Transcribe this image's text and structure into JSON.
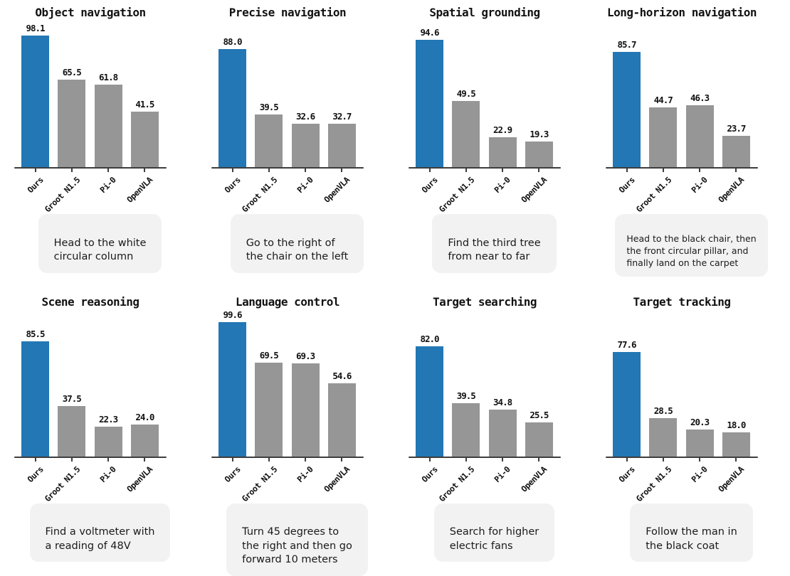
{
  "figure": {
    "description_note": "2x4 grid of bar charts comparing models across navigation benchmarks, each with an instruction caption",
    "x_categories": [
      "Ours",
      "Groot N1.5",
      "Pi-0",
      "OpenVLA"
    ]
  },
  "colors": {
    "highlight_bar": "#2277b4",
    "default_bar": "#969696",
    "axis": "#3d3d3d",
    "caption_background": "#f2f2f2",
    "text": "#111111"
  },
  "chart_data": [
    {
      "type": "bar",
      "title": "Object navigation",
      "categories": [
        "Ours",
        "Groot N1.5",
        "Pi-0",
        "OpenVLA"
      ],
      "values": [
        98.1,
        65.5,
        61.8,
        41.5
      ],
      "value_labels": [
        "98.1",
        "65.5",
        "61.8",
        "41.5"
      ],
      "ylim": [
        0,
        100
      ],
      "highlight_index": 0,
      "highlight_category": "Ours",
      "caption": "Head to the white\ncircular column"
    },
    {
      "type": "bar",
      "title": "Precise navigation",
      "categories": [
        "Ours",
        "Groot N1.5",
        "Pi-0",
        "OpenVLA"
      ],
      "values": [
        88.0,
        39.5,
        32.6,
        32.7
      ],
      "value_labels": [
        "88.0",
        "39.5",
        "32.6",
        "32.7"
      ],
      "ylim": [
        0,
        100
      ],
      "highlight_index": 0,
      "highlight_category": "Ours",
      "caption": "Go to the right of\nthe chair on the left"
    },
    {
      "type": "bar",
      "title": "Spatial grounding",
      "categories": [
        "Ours",
        "Groot N1.5",
        "Pi-0",
        "OpenVLA"
      ],
      "values": [
        94.6,
        49.5,
        22.9,
        19.3
      ],
      "value_labels": [
        "94.6",
        "49.5",
        "22.9",
        "19.3"
      ],
      "ylim": [
        0,
        100
      ],
      "highlight_index": 0,
      "highlight_category": "Ours",
      "caption": "Find the third tree\nfrom near to far"
    },
    {
      "type": "bar",
      "title": "Long-horizon navigation",
      "categories": [
        "Ours",
        "Groot N1.5",
        "Pi-0",
        "OpenVLA"
      ],
      "values": [
        85.7,
        44.7,
        46.3,
        23.7
      ],
      "value_labels": [
        "85.7",
        "44.7",
        "46.3",
        "23.7"
      ],
      "ylim": [
        0,
        100
      ],
      "highlight_index": 0,
      "highlight_category": "Ours",
      "caption": "Head to the black chair, then\nthe front circular pillar, and\nfinally land on the carpet"
    },
    {
      "type": "bar",
      "title": "Scene reasoning",
      "categories": [
        "Ours",
        "Groot N1.5",
        "Pi-0",
        "OpenVLA"
      ],
      "values": [
        85.5,
        37.5,
        22.3,
        24.0
      ],
      "value_labels": [
        "85.5",
        "37.5",
        "22.3",
        "24.0"
      ],
      "ylim": [
        0,
        100
      ],
      "highlight_index": 0,
      "highlight_category": "Ours",
      "caption": "Find a voltmeter with\na reading of 48V"
    },
    {
      "type": "bar",
      "title": "Language control",
      "categories": [
        "Ours",
        "Groot N1.5",
        "Pi-0",
        "OpenVLA"
      ],
      "values": [
        99.6,
        69.5,
        69.3,
        54.6
      ],
      "value_labels": [
        "99.6",
        "69.5",
        "69.3",
        "54.6"
      ],
      "ylim": [
        0,
        100
      ],
      "highlight_index": 0,
      "highlight_category": "Ours",
      "caption": "Turn 45 degrees to\nthe right and then go\nforward 10 meters"
    },
    {
      "type": "bar",
      "title": "Target searching",
      "categories": [
        "Ours",
        "Groot N1.5",
        "Pi-0",
        "OpenVLA"
      ],
      "values": [
        82.0,
        39.5,
        34.8,
        25.5
      ],
      "value_labels": [
        "82.0",
        "39.5",
        "34.8",
        "25.5"
      ],
      "ylim": [
        0,
        100
      ],
      "highlight_index": 0,
      "highlight_category": "Ours",
      "caption": "Search for higher\nelectric fans"
    },
    {
      "type": "bar",
      "title": "Target tracking",
      "categories": [
        "Ours",
        "Groot N1.5",
        "Pi-0",
        "OpenVLA"
      ],
      "values": [
        77.6,
        28.5,
        20.3,
        18.0
      ],
      "value_labels": [
        "77.6",
        "28.5",
        "20.3",
        "18.0"
      ],
      "ylim": [
        0,
        100
      ],
      "highlight_index": 0,
      "highlight_category": "Ours",
      "caption": "Follow the man in\nthe black coat"
    }
  ]
}
